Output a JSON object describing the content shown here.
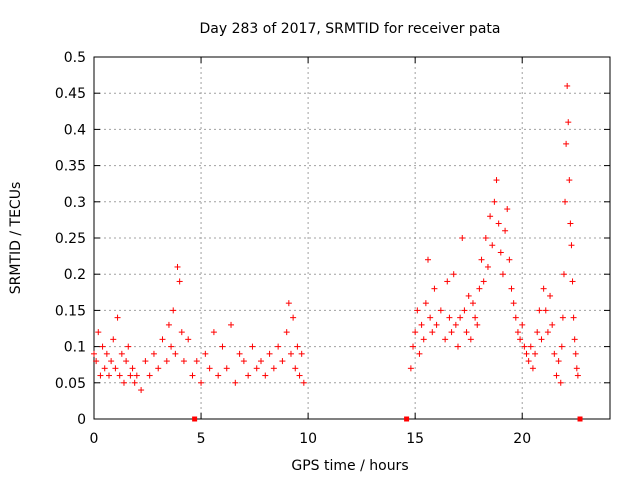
{
  "chart_data": {
    "type": "scatter",
    "title": "Day 283 of 2017, SRMTID for receiver pata",
    "xlabel": "GPS time / hours",
    "ylabel": "SRMTID / TECUs",
    "xlim": [
      0,
      24.1
    ],
    "ylim": [
      0,
      0.5
    ],
    "x_ticks": [
      0,
      5,
      10,
      15,
      20
    ],
    "x_tick_labels": [
      "0",
      "5",
      "10",
      "15",
      "20"
    ],
    "y_ticks": [
      0,
      0.05,
      0.1,
      0.15,
      0.2,
      0.25,
      0.3,
      0.35,
      0.4,
      0.45,
      0.5
    ],
    "y_tick_labels": [
      "0",
      "0.05",
      "0.1",
      "0.15",
      "0.2",
      "0.25",
      "0.3",
      "0.35",
      "0.4",
      "0.45",
      "0.5"
    ],
    "grid": true,
    "marker": "+",
    "color": "#ff0000",
    "series": [
      {
        "name": "SRMTID",
        "points": [
          [
            0.0,
            0.09
          ],
          [
            0.1,
            0.08
          ],
          [
            0.2,
            0.12
          ],
          [
            0.3,
            0.06
          ],
          [
            0.4,
            0.1
          ],
          [
            0.5,
            0.07
          ],
          [
            0.6,
            0.09
          ],
          [
            0.7,
            0.06
          ],
          [
            0.8,
            0.08
          ],
          [
            0.9,
            0.11
          ],
          [
            1.0,
            0.07
          ],
          [
            1.1,
            0.14
          ],
          [
            1.2,
            0.06
          ],
          [
            1.3,
            0.09
          ],
          [
            1.4,
            0.05
          ],
          [
            1.5,
            0.08
          ],
          [
            1.6,
            0.1
          ],
          [
            1.7,
            0.06
          ],
          [
            1.8,
            0.07
          ],
          [
            1.9,
            0.05
          ],
          [
            2.0,
            0.06
          ],
          [
            2.2,
            0.04
          ],
          [
            2.4,
            0.08
          ],
          [
            2.6,
            0.06
          ],
          [
            2.8,
            0.09
          ],
          [
            3.0,
            0.07
          ],
          [
            3.2,
            0.11
          ],
          [
            3.4,
            0.08
          ],
          [
            3.5,
            0.13
          ],
          [
            3.6,
            0.1
          ],
          [
            3.7,
            0.15
          ],
          [
            3.8,
            0.09
          ],
          [
            3.9,
            0.21
          ],
          [
            4.0,
            0.19
          ],
          [
            4.1,
            0.12
          ],
          [
            4.2,
            0.08
          ],
          [
            4.4,
            0.11
          ],
          [
            4.6,
            0.06
          ],
          [
            4.8,
            0.08
          ],
          [
            5.0,
            0.05
          ],
          [
            5.2,
            0.09
          ],
          [
            5.4,
            0.07
          ],
          [
            5.6,
            0.12
          ],
          [
            5.8,
            0.06
          ],
          [
            6.0,
            0.1
          ],
          [
            6.2,
            0.07
          ],
          [
            6.4,
            0.13
          ],
          [
            6.6,
            0.05
          ],
          [
            6.8,
            0.09
          ],
          [
            7.0,
            0.08
          ],
          [
            7.2,
            0.06
          ],
          [
            7.4,
            0.1
          ],
          [
            7.6,
            0.07
          ],
          [
            7.8,
            0.08
          ],
          [
            8.0,
            0.06
          ],
          [
            8.2,
            0.09
          ],
          [
            8.4,
            0.07
          ],
          [
            8.6,
            0.1
          ],
          [
            8.8,
            0.08
          ],
          [
            9.0,
            0.12
          ],
          [
            9.1,
            0.16
          ],
          [
            9.2,
            0.09
          ],
          [
            9.3,
            0.14
          ],
          [
            9.4,
            0.07
          ],
          [
            9.5,
            0.1
          ],
          [
            9.6,
            0.06
          ],
          [
            9.7,
            0.09
          ],
          [
            9.8,
            0.05
          ],
          [
            14.8,
            0.07
          ],
          [
            14.9,
            0.1
          ],
          [
            15.0,
            0.12
          ],
          [
            15.1,
            0.15
          ],
          [
            15.2,
            0.09
          ],
          [
            15.3,
            0.13
          ],
          [
            15.4,
            0.11
          ],
          [
            15.5,
            0.16
          ],
          [
            15.6,
            0.22
          ],
          [
            15.7,
            0.14
          ],
          [
            15.8,
            0.12
          ],
          [
            15.9,
            0.18
          ],
          [
            16.0,
            0.13
          ],
          [
            16.2,
            0.15
          ],
          [
            16.4,
            0.11
          ],
          [
            16.5,
            0.19
          ],
          [
            16.6,
            0.14
          ],
          [
            16.7,
            0.12
          ],
          [
            16.8,
            0.2
          ],
          [
            16.9,
            0.13
          ],
          [
            17.0,
            0.1
          ],
          [
            17.1,
            0.14
          ],
          [
            17.2,
            0.25
          ],
          [
            17.3,
            0.15
          ],
          [
            17.4,
            0.12
          ],
          [
            17.5,
            0.17
          ],
          [
            17.6,
            0.11
          ],
          [
            17.7,
            0.16
          ],
          [
            17.8,
            0.14
          ],
          [
            17.9,
            0.13
          ],
          [
            18.0,
            0.18
          ],
          [
            18.1,
            0.22
          ],
          [
            18.2,
            0.19
          ],
          [
            18.3,
            0.25
          ],
          [
            18.4,
            0.21
          ],
          [
            18.5,
            0.28
          ],
          [
            18.6,
            0.24
          ],
          [
            18.7,
            0.3
          ],
          [
            18.8,
            0.33
          ],
          [
            18.9,
            0.27
          ],
          [
            19.0,
            0.23
          ],
          [
            19.1,
            0.2
          ],
          [
            19.2,
            0.26
          ],
          [
            19.3,
            0.29
          ],
          [
            19.4,
            0.22
          ],
          [
            19.5,
            0.18
          ],
          [
            19.6,
            0.16
          ],
          [
            19.7,
            0.14
          ],
          [
            19.8,
            0.12
          ],
          [
            19.9,
            0.11
          ],
          [
            20.0,
            0.13
          ],
          [
            20.1,
            0.1
          ],
          [
            20.2,
            0.09
          ],
          [
            20.3,
            0.08
          ],
          [
            20.4,
            0.1
          ],
          [
            20.5,
            0.07
          ],
          [
            20.6,
            0.09
          ],
          [
            20.7,
            0.12
          ],
          [
            20.8,
            0.15
          ],
          [
            20.9,
            0.11
          ],
          [
            21.0,
            0.18
          ],
          [
            21.1,
            0.15
          ],
          [
            21.2,
            0.12
          ],
          [
            21.3,
            0.17
          ],
          [
            21.4,
            0.13
          ],
          [
            21.5,
            0.09
          ],
          [
            21.6,
            0.06
          ],
          [
            21.7,
            0.08
          ],
          [
            21.8,
            0.05
          ],
          [
            21.85,
            0.1
          ],
          [
            21.9,
            0.14
          ],
          [
            21.95,
            0.2
          ],
          [
            22.0,
            0.3
          ],
          [
            22.05,
            0.38
          ],
          [
            22.1,
            0.46
          ],
          [
            22.15,
            0.41
          ],
          [
            22.2,
            0.33
          ],
          [
            22.25,
            0.27
          ],
          [
            22.3,
            0.24
          ],
          [
            22.35,
            0.19
          ],
          [
            22.4,
            0.14
          ],
          [
            22.45,
            0.11
          ],
          [
            22.5,
            0.09
          ],
          [
            22.55,
            0.07
          ],
          [
            22.6,
            0.06
          ]
        ]
      }
    ],
    "gap_markers": [
      4.7,
      14.6,
      22.7
    ]
  }
}
